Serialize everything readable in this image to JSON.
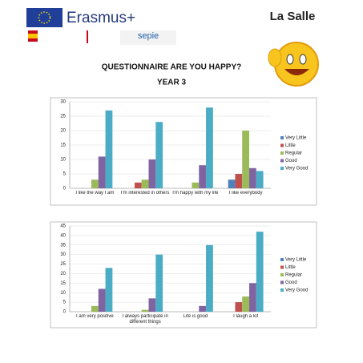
{
  "header": {
    "erasmus": "Erasmus+",
    "sepie": "sepie",
    "school": "La Salle",
    "title": "QUESTIONNAIRE ARE YOU HAPPY?",
    "subtitle": "YEAR 3"
  },
  "chart_data": [
    {
      "type": "bar",
      "categories": [
        "I like the way I am",
        "I'm interested in others",
        "I'm happy with my life",
        "I like everybody"
      ],
      "series": [
        {
          "name": "Very Little",
          "color": "#4f81bd",
          "values": [
            0,
            0,
            0,
            3
          ]
        },
        {
          "name": "Little",
          "color": "#c0504d",
          "values": [
            0,
            2,
            0,
            5
          ]
        },
        {
          "name": "Regular",
          "color": "#9bbb59",
          "values": [
            3,
            3,
            2,
            20
          ]
        },
        {
          "name": "Good",
          "color": "#8064a2",
          "values": [
            11,
            10,
            8,
            7
          ]
        },
        {
          "name": "Very Good",
          "color": "#4bacc6",
          "values": [
            27,
            23,
            28,
            6
          ]
        }
      ],
      "ylim": [
        0,
        30
      ],
      "yticks": [
        0,
        5,
        10,
        15,
        20,
        25,
        30
      ],
      "legend": "right"
    },
    {
      "type": "bar",
      "categories": [
        "I am very positive",
        "I always participate in different things",
        "Life is good",
        "I laugh a lot"
      ],
      "series": [
        {
          "name": "Very Little",
          "color": "#4f81bd",
          "values": [
            0,
            0,
            0,
            0
          ]
        },
        {
          "name": "Little",
          "color": "#c0504d",
          "values": [
            0,
            0,
            0,
            5
          ]
        },
        {
          "name": "Regular",
          "color": "#9bbb59",
          "values": [
            3,
            1,
            0,
            8
          ]
        },
        {
          "name": "Good",
          "color": "#8064a2",
          "values": [
            12,
            7,
            3,
            15
          ]
        },
        {
          "name": "Very Good",
          "color": "#4bacc6",
          "values": [
            23,
            30,
            35,
            42
          ]
        }
      ],
      "ylim": [
        0,
        45
      ],
      "yticks": [
        0,
        5,
        10,
        15,
        20,
        25,
        30,
        35,
        40,
        45
      ],
      "legend": "right"
    }
  ]
}
